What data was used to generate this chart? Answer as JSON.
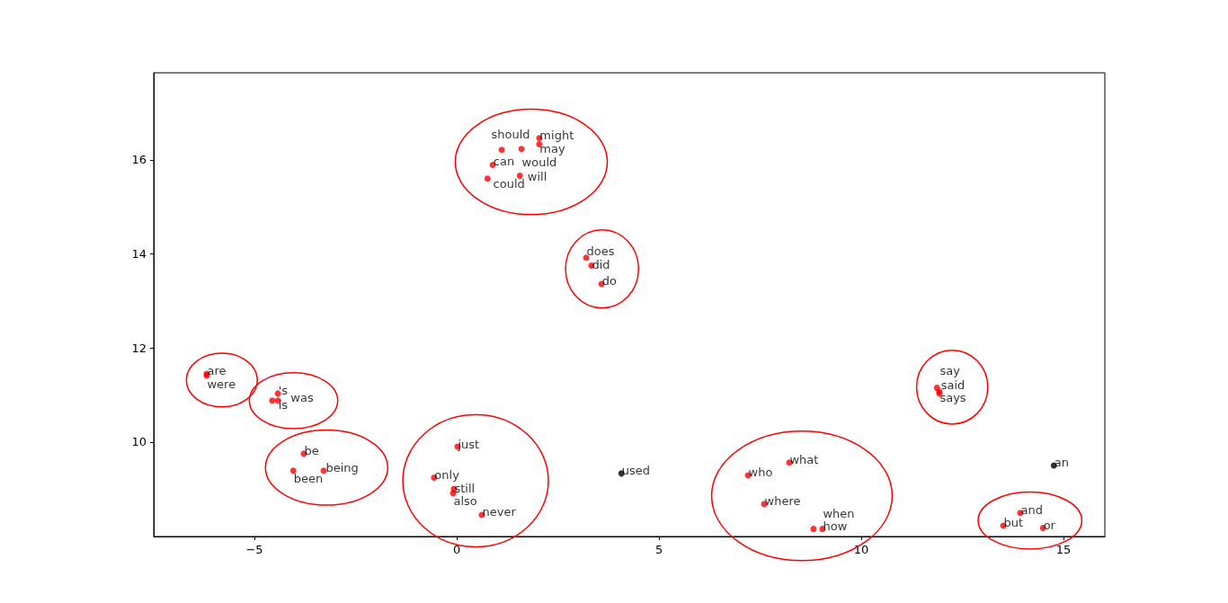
{
  "chart_data": {
    "type": "scatter",
    "marker": "circle",
    "grid": false,
    "xlim": [
      -7.49,
      16.02
    ],
    "ylim": [
      7.99,
      17.85
    ],
    "xticks": [
      -5,
      0,
      5,
      10,
      15
    ],
    "yticks": [
      10,
      12,
      14,
      16
    ],
    "series": [
      {
        "color": "#ff0000",
        "x": [
          2.04,
          2.04,
          1.6,
          1.11,
          0.89,
          0.76,
          1.56
        ],
        "values": [
          16.46,
          16.33,
          16.23,
          16.21,
          15.89,
          15.6,
          15.66
        ],
        "value_labels": [
          "might",
          "may",
          "would",
          "should",
          "could",
          "can",
          "will"
        ]
      },
      {
        "color": "#ff0000",
        "x": [
          3.2,
          3.33,
          3.58
        ],
        "values": [
          13.92,
          13.75,
          13.36
        ],
        "value_labels": [
          "does",
          "did",
          "do"
        ]
      },
      {
        "color": "#ff0000",
        "x": [
          -6.18,
          -6.18
        ],
        "values": [
          11.45,
          11.41
        ],
        "value_labels": [
          "are",
          "were"
        ]
      },
      {
        "color": "#ff0000",
        "x": [
          -4.42,
          -4.42,
          -4.56
        ],
        "values": [
          11.03,
          10.88,
          10.88
        ],
        "value_labels": [
          "'s",
          "is",
          "was"
        ]
      },
      {
        "color": "#ff0000",
        "x": [
          -3.78,
          -4.04,
          -3.29
        ],
        "values": [
          9.75,
          9.39,
          9.39
        ],
        "value_labels": [
          "be",
          "been",
          "being"
        ]
      },
      {
        "color": "#ff0000",
        "x": [
          0.02,
          -0.56,
          -0.07,
          -0.09,
          0.62
        ],
        "values": [
          9.9,
          9.24,
          9.0,
          8.91,
          8.45
        ],
        "value_labels": [
          "just",
          "only",
          "still",
          "also",
          "never"
        ]
      },
      {
        "color": "#ff0000",
        "x": [
          8.22,
          7.2,
          7.6,
          8.82,
          9.04
        ],
        "values": [
          9.56,
          9.29,
          8.68,
          8.15,
          8.15
        ],
        "value_labels": [
          "what",
          "who",
          "where",
          "how",
          "when"
        ]
      },
      {
        "color": "#ff0000",
        "x": [
          13.93,
          13.51,
          14.49
        ],
        "values": [
          8.49,
          8.22,
          8.17
        ],
        "value_labels": [
          "and",
          "but",
          "or"
        ]
      },
      {
        "color": "#ff0000",
        "x": [
          11.87,
          11.93,
          11.93
        ],
        "values": [
          11.15,
          11.07,
          11.03
        ],
        "value_labels": [
          "said",
          "says",
          "say"
        ]
      },
      {
        "x": [
          4.07,
          14.76
        ],
        "values": [
          9.33,
          9.5
        ],
        "value_labels": [
          "used",
          "an"
        ]
      }
    ]
  }
}
